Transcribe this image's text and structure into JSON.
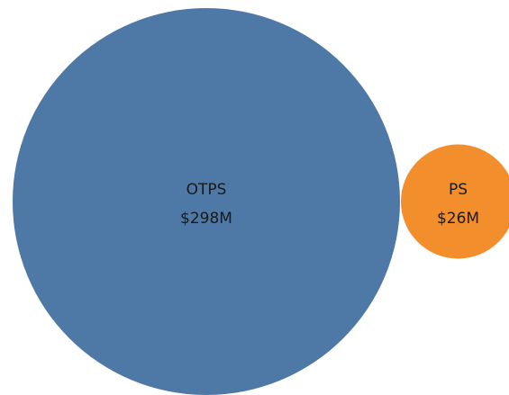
{
  "chart_data": {
    "type": "bubble",
    "categories": [
      "OTPS",
      "PS"
    ],
    "values": [
      298,
      26
    ],
    "value_labels": [
      "$298M",
      "$26M"
    ],
    "colors": [
      "#4e79a7",
      "#f28e2b"
    ]
  }
}
